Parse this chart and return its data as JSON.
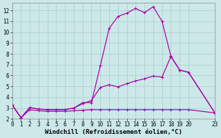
{
  "background_color": "#cce8e8",
  "grid_color": "#aacccc",
  "line_color": "#aa00aa",
  "xlabel": "Windchill (Refroidissement éolien,°C)",
  "xlim": [
    0,
    23
  ],
  "ylim": [
    2.0,
    12.7
  ],
  "xticks": [
    0,
    1,
    2,
    3,
    4,
    5,
    6,
    7,
    8,
    9,
    10,
    11,
    12,
    13,
    14,
    15,
    16,
    17,
    18,
    19,
    20,
    23
  ],
  "yticks": [
    2,
    3,
    4,
    5,
    6,
    7,
    8,
    9,
    10,
    11,
    12
  ],
  "lines": [
    {
      "x": [
        0,
        1,
        2,
        3,
        4,
        5,
        6,
        7,
        8,
        9,
        10,
        11,
        12,
        13,
        14,
        15,
        16,
        17,
        18,
        19,
        20,
        23
      ],
      "y": [
        3.3,
        2.1,
        3.05,
        2.9,
        2.85,
        2.85,
        2.85,
        3.0,
        3.5,
        3.5,
        6.9,
        10.35,
        11.45,
        11.75,
        12.2,
        11.8,
        12.35,
        11.0,
        7.8,
        6.5,
        6.3,
        2.55
      ]
    },
    {
      "x": [
        0,
        1,
        2,
        3,
        4,
        5,
        6,
        7,
        8,
        9,
        10,
        11,
        12,
        13,
        14,
        15,
        16,
        17,
        18,
        19,
        20,
        23
      ],
      "y": [
        3.3,
        2.1,
        3.05,
        2.9,
        2.85,
        2.85,
        2.85,
        3.0,
        3.4,
        3.7,
        4.9,
        5.15,
        4.95,
        5.25,
        5.5,
        5.7,
        5.95,
        5.85,
        7.75,
        6.5,
        6.3,
        2.55
      ]
    },
    {
      "x": [
        0,
        1,
        2,
        3,
        4,
        5,
        6,
        7,
        8,
        9,
        10,
        11,
        12,
        13,
        14,
        15,
        16,
        17,
        18,
        19,
        20,
        23
      ],
      "y": [
        3.3,
        2.1,
        2.85,
        2.75,
        2.7,
        2.7,
        2.7,
        2.75,
        2.8,
        2.85,
        2.85,
        2.85,
        2.85,
        2.85,
        2.85,
        2.85,
        2.85,
        2.85,
        2.85,
        2.85,
        2.85,
        2.55
      ]
    }
  ],
  "marker": "+",
  "markersize": 3.5,
  "linewidth": 0.9,
  "tick_fontsize": 5.5,
  "xlabel_fontsize": 6.5
}
